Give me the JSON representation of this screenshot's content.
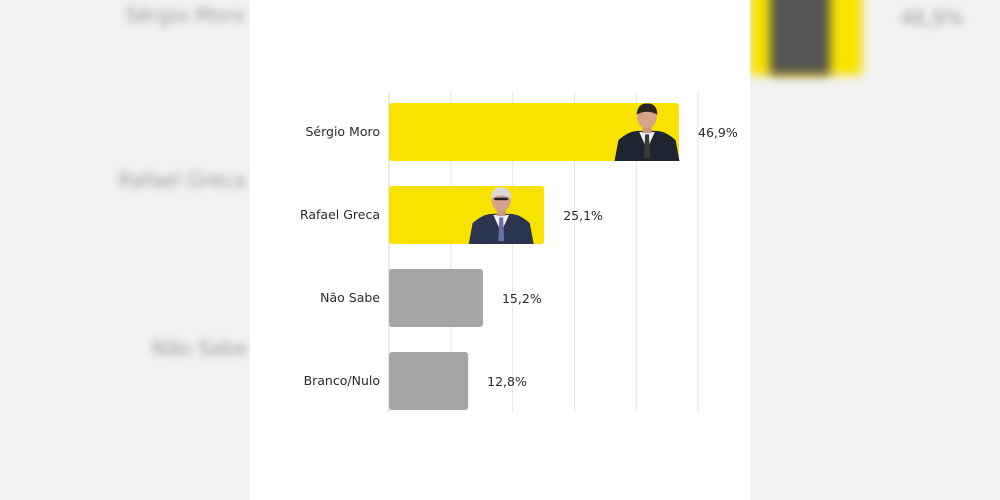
{
  "chart_data": {
    "type": "bar",
    "orientation": "horizontal",
    "categories": [
      "Sérgio Moro",
      "Rafael Greca",
      "Não Sabe",
      "Branco/Nulo"
    ],
    "values": [
      46.9,
      25.1,
      15.2,
      12.8
    ],
    "value_labels": [
      "46,9%",
      "25,1%",
      "15,2%",
      "12,8%"
    ],
    "colors": [
      "#f7e200",
      "#f7e200",
      "#a6a6a6",
      "#a6a6a6"
    ],
    "photos": [
      "portrait-icon",
      "portrait-icon",
      null,
      null
    ],
    "grid": true,
    "xlim": [
      0,
      50
    ]
  },
  "backdrop": {
    "left_labels": [
      "Sérgio Moro",
      "Rafael Greca",
      "Não Sabe"
    ],
    "right_label": "46,9%"
  },
  "colors": {
    "accent": "#f7e200",
    "neutral": "#a6a6a6",
    "grid": "#e6e6e6",
    "axis": "#d4d4d4"
  }
}
